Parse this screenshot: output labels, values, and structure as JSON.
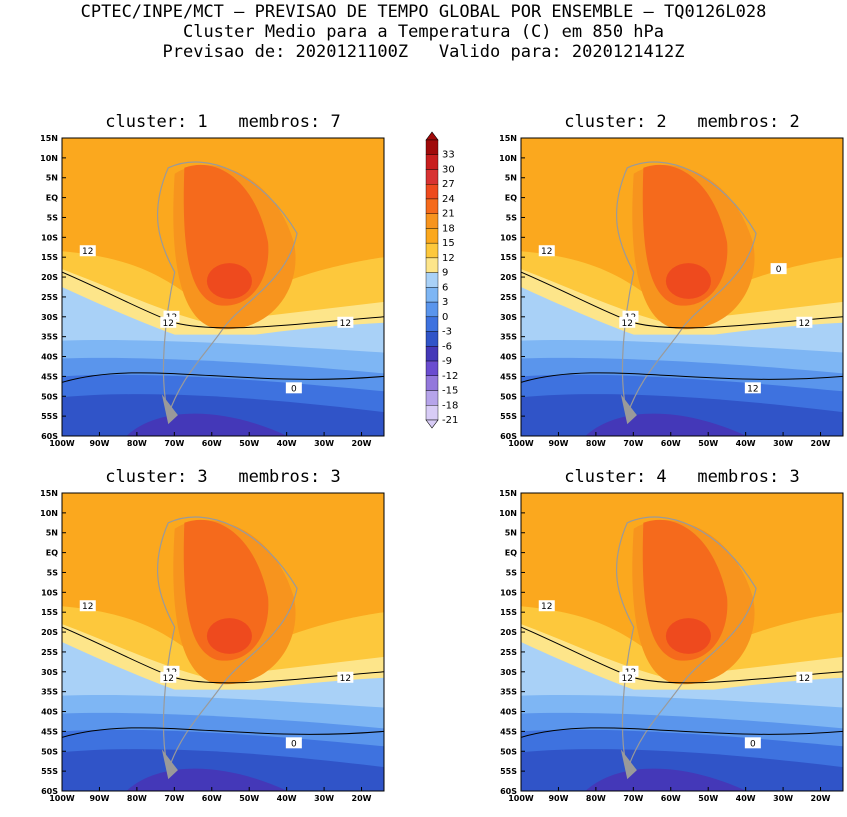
{
  "header": {
    "line1": "CPTEC/INPE/MCT — PREVISAO DE TEMPO GLOBAL POR ENSEMBLE — TQ0126L028",
    "line2": "Cluster Medio para a Temperatura (C) em 850 hPa",
    "line3": "Previsao de: 2020121100Z   Valido para: 2020121412Z"
  },
  "lat_labels": [
    "15N",
    "10N",
    "5N",
    "EQ",
    "5S",
    "10S",
    "15S",
    "20S",
    "25S",
    "30S",
    "35S",
    "40S",
    "45S",
    "50S",
    "55S",
    "60S"
  ],
  "lon_labels": [
    "100W",
    "90W",
    "80W",
    "70W",
    "60W",
    "50W",
    "40W",
    "30W",
    "20W"
  ],
  "colorbar": {
    "levels": [
      "33",
      "30",
      "27",
      "24",
      "21",
      "18",
      "15",
      "12",
      "9",
      "6",
      "3",
      "0",
      "-3",
      "-6",
      "-9",
      "-12",
      "-15",
      "-18",
      "-21"
    ],
    "colors": [
      "#a00a0a",
      "#c81e1e",
      "#d83232",
      "#ee4a1e",
      "#f56a1c",
      "#f7941e",
      "#fba81e",
      "#fdc83c",
      "#fde58a",
      "#a9d1f7",
      "#7eb6f4",
      "#5a95ec",
      "#3e72df",
      "#3054c8",
      "#4438b8",
      "#6a4cd0",
      "#9378dc",
      "#b6a4ea",
      "#d8ccf6"
    ]
  },
  "clusters": [
    {
      "title": "cluster: 1   membros: 7",
      "labels": [
        "12",
        "12",
        "12",
        "12",
        "0"
      ]
    },
    {
      "title": "cluster: 2   membros: 2",
      "labels": [
        "12",
        "12",
        "12",
        "12",
        "12",
        "0"
      ]
    },
    {
      "title": "cluster: 3   membros: 3",
      "labels": [
        "12",
        "12",
        "12",
        "12",
        "0"
      ]
    },
    {
      "title": "cluster: 4   membros: 3",
      "labels": [
        "12",
        "12",
        "12",
        "12",
        "0"
      ]
    }
  ],
  "map_colors": {
    "orange_light": "#fba81e",
    "orange": "#f7941e",
    "orange_dark": "#f56a1c",
    "red": "#ee4a1e",
    "yellow": "#fde58a",
    "yellow2": "#fdc83c",
    "blue_light": "#a9d1f7",
    "blue1": "#7eb6f4",
    "blue2": "#5a95ec",
    "blue3": "#3e72df",
    "blue4": "#3054c8",
    "purple": "#4438b8",
    "land": "#9a9a9a"
  }
}
